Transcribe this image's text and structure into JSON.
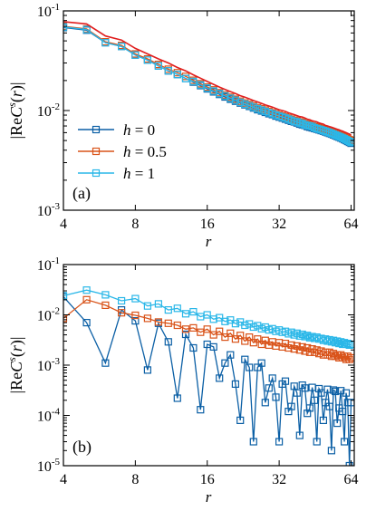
{
  "chart_data": [
    {
      "type": "line",
      "panel_label": "(a)",
      "xlabel": "r",
      "ylabel": "|ReC^s(r)|",
      "xscale": "log2",
      "yscale": "log",
      "xlim": [
        4,
        66
      ],
      "ylim": [
        0.001,
        0.1
      ],
      "xticks": [
        4,
        8,
        16,
        32,
        64
      ],
      "xtick_labels": [
        "4",
        "8",
        "16",
        "32",
        "64"
      ],
      "yticks": [
        0.001,
        0.01,
        0.1
      ],
      "ytick_exponents": [
        "-3",
        "-2",
        "-1"
      ],
      "ytick_base": "10",
      "legend_position": "lower-left",
      "series": [
        {
          "name": "h = 0",
          "color": "#0b5fa5",
          "marker": "square",
          "x": [
            4,
            5,
            6,
            7,
            8,
            9,
            10,
            11,
            12,
            13,
            14,
            15,
            16,
            17,
            18,
            19,
            20,
            21,
            22,
            23,
            24,
            25,
            26,
            27,
            28,
            29,
            30,
            31,
            32,
            33,
            34,
            35,
            36,
            37,
            38,
            39,
            40,
            41,
            42,
            43,
            44,
            45,
            46,
            47,
            48,
            49,
            50,
            51,
            52,
            53,
            54,
            55,
            56,
            57,
            58,
            59,
            60,
            61,
            62,
            63,
            64
          ],
          "values": [
            0.068,
            0.064,
            0.048,
            0.044,
            0.036,
            0.032,
            0.028,
            0.025,
            0.023,
            0.021,
            0.0193,
            0.0178,
            0.0165,
            0.0154,
            0.0145,
            0.0137,
            0.013,
            0.0124,
            0.0119,
            0.0114,
            0.011,
            0.0106,
            0.0102,
            0.0099,
            0.0096,
            0.0093,
            0.0091,
            0.0088,
            0.0086,
            0.0084,
            0.0082,
            0.008,
            0.0078,
            0.0077,
            0.0075,
            0.0073,
            0.0072,
            0.0071,
            0.0069,
            0.0068,
            0.0067,
            0.0066,
            0.0065,
            0.0064,
            0.0063,
            0.0062,
            0.0061,
            0.006,
            0.0059,
            0.0058,
            0.0057,
            0.0056,
            0.0055,
            0.0054,
            0.0053,
            0.0052,
            0.0051,
            0.005,
            0.0049,
            0.0048,
            0.0047
          ]
        },
        {
          "name": "h = 0.5",
          "color": "#d95319",
          "marker": "square",
          "x": [
            4,
            5,
            6,
            7,
            8,
            9,
            10,
            11,
            12,
            13,
            14,
            15,
            16,
            17,
            18,
            19,
            20,
            21,
            22,
            23,
            24,
            25,
            26,
            27,
            28,
            29,
            30,
            31,
            32,
            33,
            34,
            35,
            36,
            37,
            38,
            39,
            40,
            41,
            42,
            43,
            44,
            45,
            46,
            47,
            48,
            49,
            50,
            51,
            52,
            53,
            54,
            55,
            56,
            57,
            58,
            59,
            60,
            61,
            62,
            63,
            64
          ],
          "values": [
            0.07,
            0.066,
            0.049,
            0.045,
            0.037,
            0.033,
            0.029,
            0.026,
            0.024,
            0.022,
            0.0201,
            0.0186,
            0.0172,
            0.0161,
            0.0151,
            0.0143,
            0.0136,
            0.013,
            0.0124,
            0.0119,
            0.0115,
            0.0111,
            0.0107,
            0.0104,
            0.0101,
            0.0098,
            0.0095,
            0.0093,
            0.009,
            0.0088,
            0.0086,
            0.0084,
            0.0082,
            0.008,
            0.0079,
            0.0077,
            0.0076,
            0.0074,
            0.0073,
            0.0072,
            0.007,
            0.0069,
            0.0068,
            0.0067,
            0.0066,
            0.0065,
            0.0064,
            0.0063,
            0.0062,
            0.0061,
            0.006,
            0.0059,
            0.0058,
            0.0057,
            0.0056,
            0.0055,
            0.0054,
            0.0053,
            0.0052,
            0.0051,
            0.005
          ]
        },
        {
          "name": "h = 1",
          "color": "#2ab7e8",
          "marker": "square",
          "x": [
            4,
            5,
            6,
            7,
            8,
            9,
            10,
            11,
            12,
            13,
            14,
            15,
            16,
            17,
            18,
            19,
            20,
            21,
            22,
            23,
            24,
            25,
            26,
            27,
            28,
            29,
            30,
            31,
            32,
            33,
            34,
            35,
            36,
            37,
            38,
            39,
            40,
            41,
            42,
            43,
            44,
            45,
            46,
            47,
            48,
            49,
            50,
            51,
            52,
            53,
            54,
            55,
            56,
            57,
            58,
            59,
            60,
            61,
            62,
            63,
            64
          ],
          "values": [
            0.069,
            0.065,
            0.048,
            0.044,
            0.036,
            0.032,
            0.028,
            0.025,
            0.023,
            0.021,
            0.0196,
            0.0181,
            0.0168,
            0.0157,
            0.0148,
            0.014,
            0.0133,
            0.0127,
            0.0121,
            0.0116,
            0.0112,
            0.0108,
            0.0104,
            0.0101,
            0.0098,
            0.0095,
            0.0093,
            0.009,
            0.0088,
            0.0086,
            0.0084,
            0.0082,
            0.008,
            0.0078,
            0.0077,
            0.0075,
            0.0074,
            0.0072,
            0.0071,
            0.007,
            0.0069,
            0.0067,
            0.0066,
            0.0065,
            0.0064,
            0.0063,
            0.0062,
            0.0061,
            0.006,
            0.0059,
            0.0058,
            0.0057,
            0.0056,
            0.0055,
            0.0054,
            0.0053,
            0.0052,
            0.0051,
            0.005,
            0.0049,
            0.0048
          ]
        },
        {
          "name": "",
          "color": "#e01e1e",
          "marker": "none",
          "x": [
            4,
            5,
            6,
            7,
            8,
            9,
            10,
            11,
            12,
            13,
            14,
            15,
            16,
            17,
            18,
            19,
            20,
            21,
            22,
            23,
            24,
            25,
            26,
            27,
            28,
            29,
            30,
            31,
            32,
            33,
            34,
            35,
            36,
            37,
            38,
            39,
            40,
            41,
            42,
            43,
            44,
            45,
            46,
            47,
            48,
            49,
            50,
            51,
            52,
            53,
            54,
            55,
            56,
            57,
            58,
            59,
            60,
            61,
            62,
            63,
            64
          ],
          "values": [
            0.078,
            0.074,
            0.056,
            0.051,
            0.042,
            0.037,
            0.033,
            0.03,
            0.027,
            0.025,
            0.0228,
            0.0211,
            0.0196,
            0.0183,
            0.0172,
            0.0163,
            0.0155,
            0.0148,
            0.0141,
            0.0136,
            0.0131,
            0.0126,
            0.0122,
            0.0118,
            0.0114,
            0.0111,
            0.0108,
            0.0105,
            0.0102,
            0.01,
            0.0098,
            0.0095,
            0.0093,
            0.0091,
            0.0089,
            0.0087,
            0.0086,
            0.0084,
            0.0082,
            0.0081,
            0.0079,
            0.0078,
            0.0077,
            0.0075,
            0.0074,
            0.0073,
            0.0071,
            0.007,
            0.0069,
            0.0068,
            0.0067,
            0.0066,
            0.0065,
            0.0064,
            0.0063,
            0.0062,
            0.0061,
            0.006,
            0.0059,
            0.0058,
            0.0057
          ]
        }
      ]
    },
    {
      "type": "line",
      "panel_label": "(b)",
      "xlabel": "r",
      "ylabel": "|ReC^s(r)|",
      "xscale": "log2",
      "yscale": "log",
      "xlim": [
        4,
        66
      ],
      "ylim": [
        1e-05,
        0.1
      ],
      "xticks": [
        4,
        8,
        16,
        32,
        64
      ],
      "xtick_labels": [
        "4",
        "8",
        "16",
        "32",
        "64"
      ],
      "yticks": [
        1e-05,
        0.0001,
        0.001,
        0.01,
        0.1
      ],
      "ytick_exponents": [
        "-5",
        "-4",
        "-3",
        "-2",
        "-1"
      ],
      "ytick_base": "10",
      "series": [
        {
          "name": "h = 0",
          "color": "#0b5fa5",
          "marker": "square",
          "x": [
            4,
            5,
            6,
            7,
            8,
            9,
            10,
            11,
            12,
            13,
            14,
            15,
            16,
            17,
            18,
            19,
            20,
            21,
            22,
            23,
            24,
            25,
            26,
            27,
            28,
            29,
            30,
            31,
            32,
            33,
            34,
            35,
            36,
            37,
            38,
            39,
            40,
            41,
            42,
            43,
            44,
            45,
            46,
            47,
            48,
            49,
            50,
            51,
            52,
            53,
            54,
            55,
            56,
            57,
            58,
            59,
            60,
            61,
            62,
            63,
            64
          ],
          "values": [
            0.023,
            0.007,
            0.0011,
            0.0125,
            0.0076,
            0.0008,
            0.0068,
            0.0029,
            0.00022,
            0.0041,
            0.0022,
            0.00013,
            0.0026,
            0.0023,
            0.00055,
            0.0011,
            0.0016,
            0.00042,
            8e-05,
            0.0013,
            0.0009,
            3e-05,
            0.0009,
            0.0011,
            0.00018,
            0.00035,
            0.00055,
            0.00023,
            3e-05,
            0.00042,
            0.00048,
            0.00012,
            0.00015,
            0.00038,
            0.00028,
            4e-05,
            0.0004,
            0.00035,
            0.00011,
            0.00014,
            0.00036,
            0.0002,
            3e-05,
            0.00034,
            0.00028,
            8e-05,
            0.00018,
            0.00033,
            0.00015,
            2e-05,
            0.00032,
            0.0003,
            7e-05,
            0.00014,
            0.00031,
            0.00012,
            3e-05,
            0.00028,
            0.00018,
            1e-05,
            0.00018
          ]
        },
        {
          "name": "h = 0.5",
          "color": "#d95319",
          "marker": "square",
          "x": [
            4,
            5,
            6,
            7,
            8,
            9,
            10,
            11,
            12,
            13,
            14,
            15,
            16,
            17,
            18,
            19,
            20,
            21,
            22,
            23,
            24,
            25,
            26,
            27,
            28,
            29,
            30,
            31,
            32,
            33,
            34,
            35,
            36,
            37,
            38,
            39,
            40,
            41,
            42,
            43,
            44,
            45,
            46,
            47,
            48,
            49,
            50,
            51,
            52,
            53,
            54,
            55,
            56,
            57,
            58,
            59,
            60,
            61,
            62,
            63,
            64
          ],
          "values": [
            0.0085,
            0.02,
            0.0155,
            0.011,
            0.0098,
            0.0085,
            0.0072,
            0.0068,
            0.0062,
            0.0052,
            0.0055,
            0.0045,
            0.0052,
            0.004,
            0.0047,
            0.0036,
            0.0043,
            0.0033,
            0.0039,
            0.003,
            0.0036,
            0.0028,
            0.0033,
            0.0026,
            0.0031,
            0.0025,
            0.0029,
            0.0024,
            0.0028,
            0.0023,
            0.0027,
            0.0022,
            0.0025,
            0.0021,
            0.0024,
            0.002,
            0.0023,
            0.0019,
            0.0022,
            0.0018,
            0.0021,
            0.0018,
            0.002,
            0.0017,
            0.0019,
            0.0016,
            0.0018,
            0.0016,
            0.0018,
            0.0015,
            0.0017,
            0.0015,
            0.0016,
            0.0014,
            0.0016,
            0.0014,
            0.0015,
            0.0013,
            0.0015,
            0.0013,
            0.0014
          ]
        },
        {
          "name": "h = 1",
          "color": "#2ab7e8",
          "marker": "square",
          "x": [
            4,
            5,
            6,
            7,
            8,
            9,
            10,
            11,
            12,
            13,
            14,
            15,
            16,
            17,
            18,
            19,
            20,
            21,
            22,
            23,
            24,
            25,
            26,
            27,
            28,
            29,
            30,
            31,
            32,
            33,
            34,
            35,
            36,
            37,
            38,
            39,
            40,
            41,
            42,
            43,
            44,
            45,
            46,
            47,
            48,
            49,
            50,
            51,
            52,
            53,
            54,
            55,
            56,
            57,
            58,
            59,
            60,
            61,
            62,
            63,
            64
          ],
          "values": [
            0.024,
            0.031,
            0.025,
            0.019,
            0.021,
            0.015,
            0.0165,
            0.0125,
            0.0135,
            0.0105,
            0.0115,
            0.0092,
            0.01,
            0.0082,
            0.0088,
            0.0074,
            0.0079,
            0.0067,
            0.0072,
            0.0062,
            0.0066,
            0.0057,
            0.0061,
            0.0053,
            0.0057,
            0.005,
            0.0053,
            0.0047,
            0.005,
            0.0045,
            0.0047,
            0.0042,
            0.0045,
            0.004,
            0.0043,
            0.0038,
            0.0041,
            0.0037,
            0.0039,
            0.0035,
            0.0037,
            0.0034,
            0.0036,
            0.0033,
            0.0034,
            0.0031,
            0.0033,
            0.003,
            0.0032,
            0.0029,
            0.0031,
            0.0028,
            0.003,
            0.0027,
            0.0029,
            0.0026,
            0.0028,
            0.0026,
            0.0027,
            0.0025,
            0.0026
          ]
        }
      ]
    }
  ]
}
